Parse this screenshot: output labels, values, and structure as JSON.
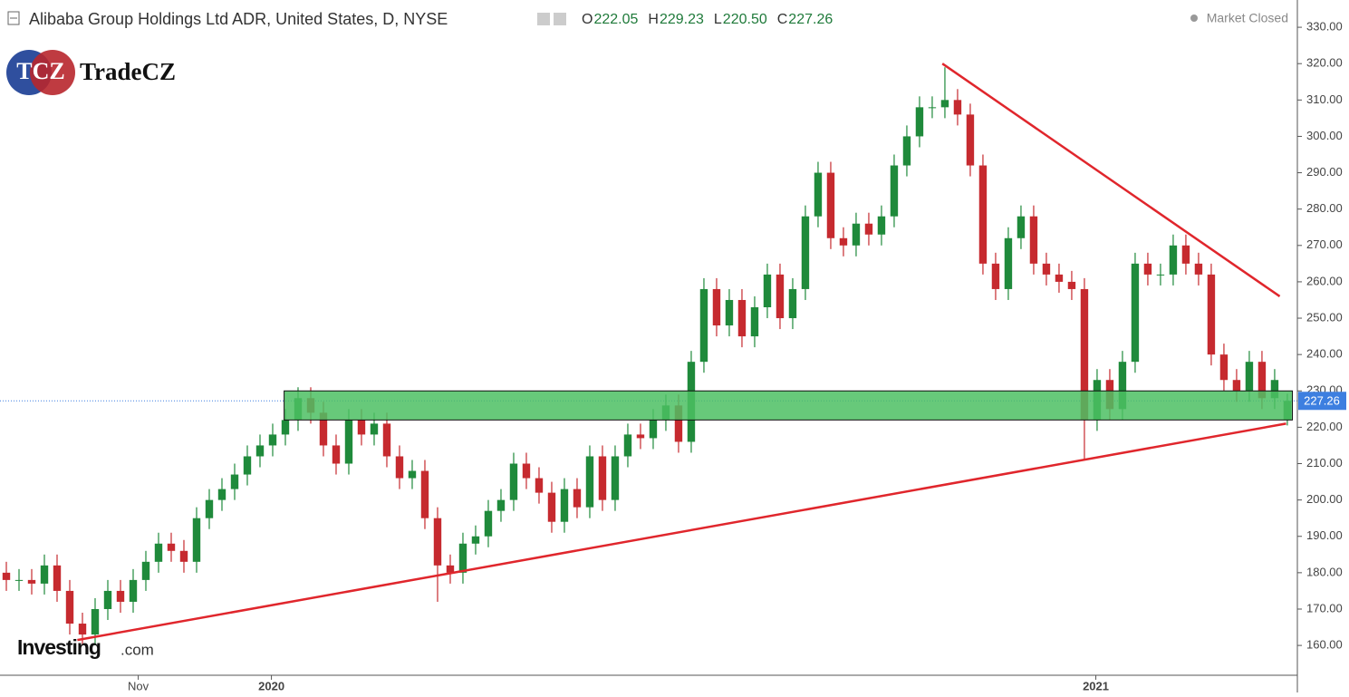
{
  "header": {
    "title": "Alibaba Group Holdings Ltd ADR, United States, D, NYSE",
    "ohlc": [
      {
        "label": "O",
        "value": "222.05"
      },
      {
        "label": "H",
        "value": "229.23"
      },
      {
        "label": "L",
        "value": "220.50"
      },
      {
        "label": "C",
        "value": "227.26"
      }
    ],
    "status": "Market Closed"
  },
  "logo": {
    "mark": "TCZ",
    "name": "TradeCZ"
  },
  "watermark": {
    "brand": "Investing",
    "suffix": ".com"
  },
  "chart_data": {
    "type": "candlestick",
    "up_color": "#1f8a3b",
    "down_color": "#c62a2f",
    "open": [
      180,
      178,
      178,
      177,
      182,
      175,
      166,
      163,
      170,
      175,
      172,
      178,
      183,
      188,
      186,
      183,
      195,
      200,
      203,
      207,
      212,
      215,
      218,
      222,
      228,
      224,
      215,
      210,
      222,
      218,
      221,
      212,
      206,
      208,
      195,
      182,
      180,
      188,
      190,
      197,
      200,
      210,
      206,
      202,
      194,
      203,
      198,
      212,
      200,
      212,
      218,
      217,
      222,
      226,
      216,
      238,
      258,
      248,
      255,
      245,
      253,
      262,
      250,
      258,
      278,
      290,
      272,
      270,
      276,
      273,
      278,
      292,
      300,
      308,
      308,
      310,
      306,
      292,
      265,
      258,
      272,
      278,
      265,
      262,
      260,
      258,
      222,
      233,
      225,
      238,
      265,
      262,
      262,
      270,
      265,
      262,
      240,
      233,
      230,
      238,
      228,
      222.05
    ],
    "high": [
      183,
      181,
      181,
      185,
      185,
      178,
      169,
      173,
      178,
      178,
      181,
      186,
      191,
      191,
      189,
      198,
      203,
      206,
      210,
      215,
      218,
      221,
      225,
      231,
      231,
      227,
      218,
      225,
      225,
      224,
      224,
      215,
      211,
      211,
      198,
      185,
      191,
      193,
      200,
      203,
      213,
      213,
      209,
      205,
      206,
      206,
      215,
      215,
      215,
      221,
      221,
      225,
      229,
      229,
      241,
      261,
      261,
      258,
      258,
      256,
      265,
      265,
      261,
      281,
      293,
      293,
      275,
      279,
      279,
      281,
      295,
      303,
      311,
      311,
      319,
      313,
      309,
      295,
      268,
      275,
      281,
      281,
      268,
      265,
      263,
      261,
      236,
      236,
      241,
      268,
      268,
      265,
      273,
      273,
      268,
      265,
      243,
      236,
      241,
      241,
      236,
      229.23
    ],
    "low": [
      175,
      175,
      174,
      174,
      172,
      163,
      160,
      160,
      167,
      169,
      169,
      175,
      180,
      183,
      180,
      180,
      192,
      197,
      200,
      204,
      209,
      212,
      215,
      219,
      221,
      212,
      207,
      207,
      215,
      215,
      209,
      203,
      203,
      192,
      172,
      177,
      177,
      185,
      187,
      194,
      197,
      203,
      199,
      191,
      191,
      195,
      195,
      197,
      197,
      209,
      214,
      214,
      219,
      213,
      213,
      235,
      245,
      245,
      242,
      242,
      250,
      247,
      247,
      255,
      275,
      269,
      267,
      267,
      270,
      270,
      275,
      289,
      297,
      305,
      305,
      303,
      289,
      262,
      255,
      255,
      269,
      262,
      259,
      257,
      255,
      211,
      219,
      222,
      222,
      235,
      259,
      259,
      259,
      262,
      259,
      237,
      230,
      227,
      227,
      225,
      225,
      220.5
    ],
    "close": [
      178,
      178,
      177,
      182,
      175,
      166,
      163,
      170,
      175,
      172,
      178,
      183,
      188,
      186,
      183,
      195,
      200,
      203,
      207,
      212,
      215,
      218,
      222,
      228,
      224,
      215,
      210,
      222,
      218,
      221,
      212,
      206,
      208,
      195,
      182,
      180,
      188,
      190,
      197,
      200,
      210,
      206,
      202,
      194,
      203,
      198,
      212,
      200,
      212,
      218,
      217,
      222,
      226,
      216,
      238,
      258,
      248,
      255,
      245,
      253,
      262,
      250,
      258,
      278,
      290,
      272,
      270,
      276,
      273,
      278,
      292,
      300,
      308,
      308,
      310,
      306,
      292,
      265,
      258,
      272,
      278,
      265,
      262,
      260,
      258,
      222,
      233,
      225,
      238,
      265,
      262,
      262,
      270,
      265,
      262,
      240,
      233,
      230,
      238,
      228,
      233,
      227.26
    ],
    "xlim": [
      -0.5,
      101.79
    ],
    "xticks": [
      {
        "value": 10.4,
        "label": "Nov"
      },
      {
        "value": 20.9,
        "label": "2020"
      },
      {
        "value": 85.9,
        "label": "2021"
      }
    ],
    "ylim": [
      151.8,
      337.5
    ],
    "yticks": [
      {
        "value": 160,
        "label": "160.00"
      },
      {
        "value": 170,
        "label": "170.00"
      },
      {
        "value": 180,
        "label": "180.00"
      },
      {
        "value": 190,
        "label": "190.00"
      },
      {
        "value": 200,
        "label": "200.00"
      },
      {
        "value": 210,
        "label": "210.00"
      },
      {
        "value": 220,
        "label": "220.00"
      },
      {
        "value": 230,
        "label": "230.00"
      },
      {
        "value": 240,
        "label": "240.00"
      },
      {
        "value": 250,
        "label": "250.00"
      },
      {
        "value": 260,
        "label": "260.00"
      },
      {
        "value": 270,
        "label": "270.00"
      },
      {
        "value": 280,
        "label": "280.00"
      },
      {
        "value": 290,
        "label": "290.00"
      },
      {
        "value": 300,
        "label": "300.00"
      },
      {
        "value": 310,
        "label": "310.00"
      },
      {
        "value": 320,
        "label": "320.00"
      },
      {
        "value": 330,
        "label": "330.00"
      }
    ],
    "zone": {
      "color": "#4cbf63",
      "x": [
        21.9,
        101.4
      ],
      "y": [
        222,
        230
      ]
    },
    "trendlines": [
      {
        "color": "#e0262c",
        "x": [
          73.8,
          100.4
        ],
        "y": [
          320,
          256
        ]
      },
      {
        "color": "#e0262c",
        "x": [
          5.6,
          100.9
        ],
        "y": [
          161.5,
          221
        ]
      }
    ],
    "last_price_color": "#3d7fe0"
  }
}
